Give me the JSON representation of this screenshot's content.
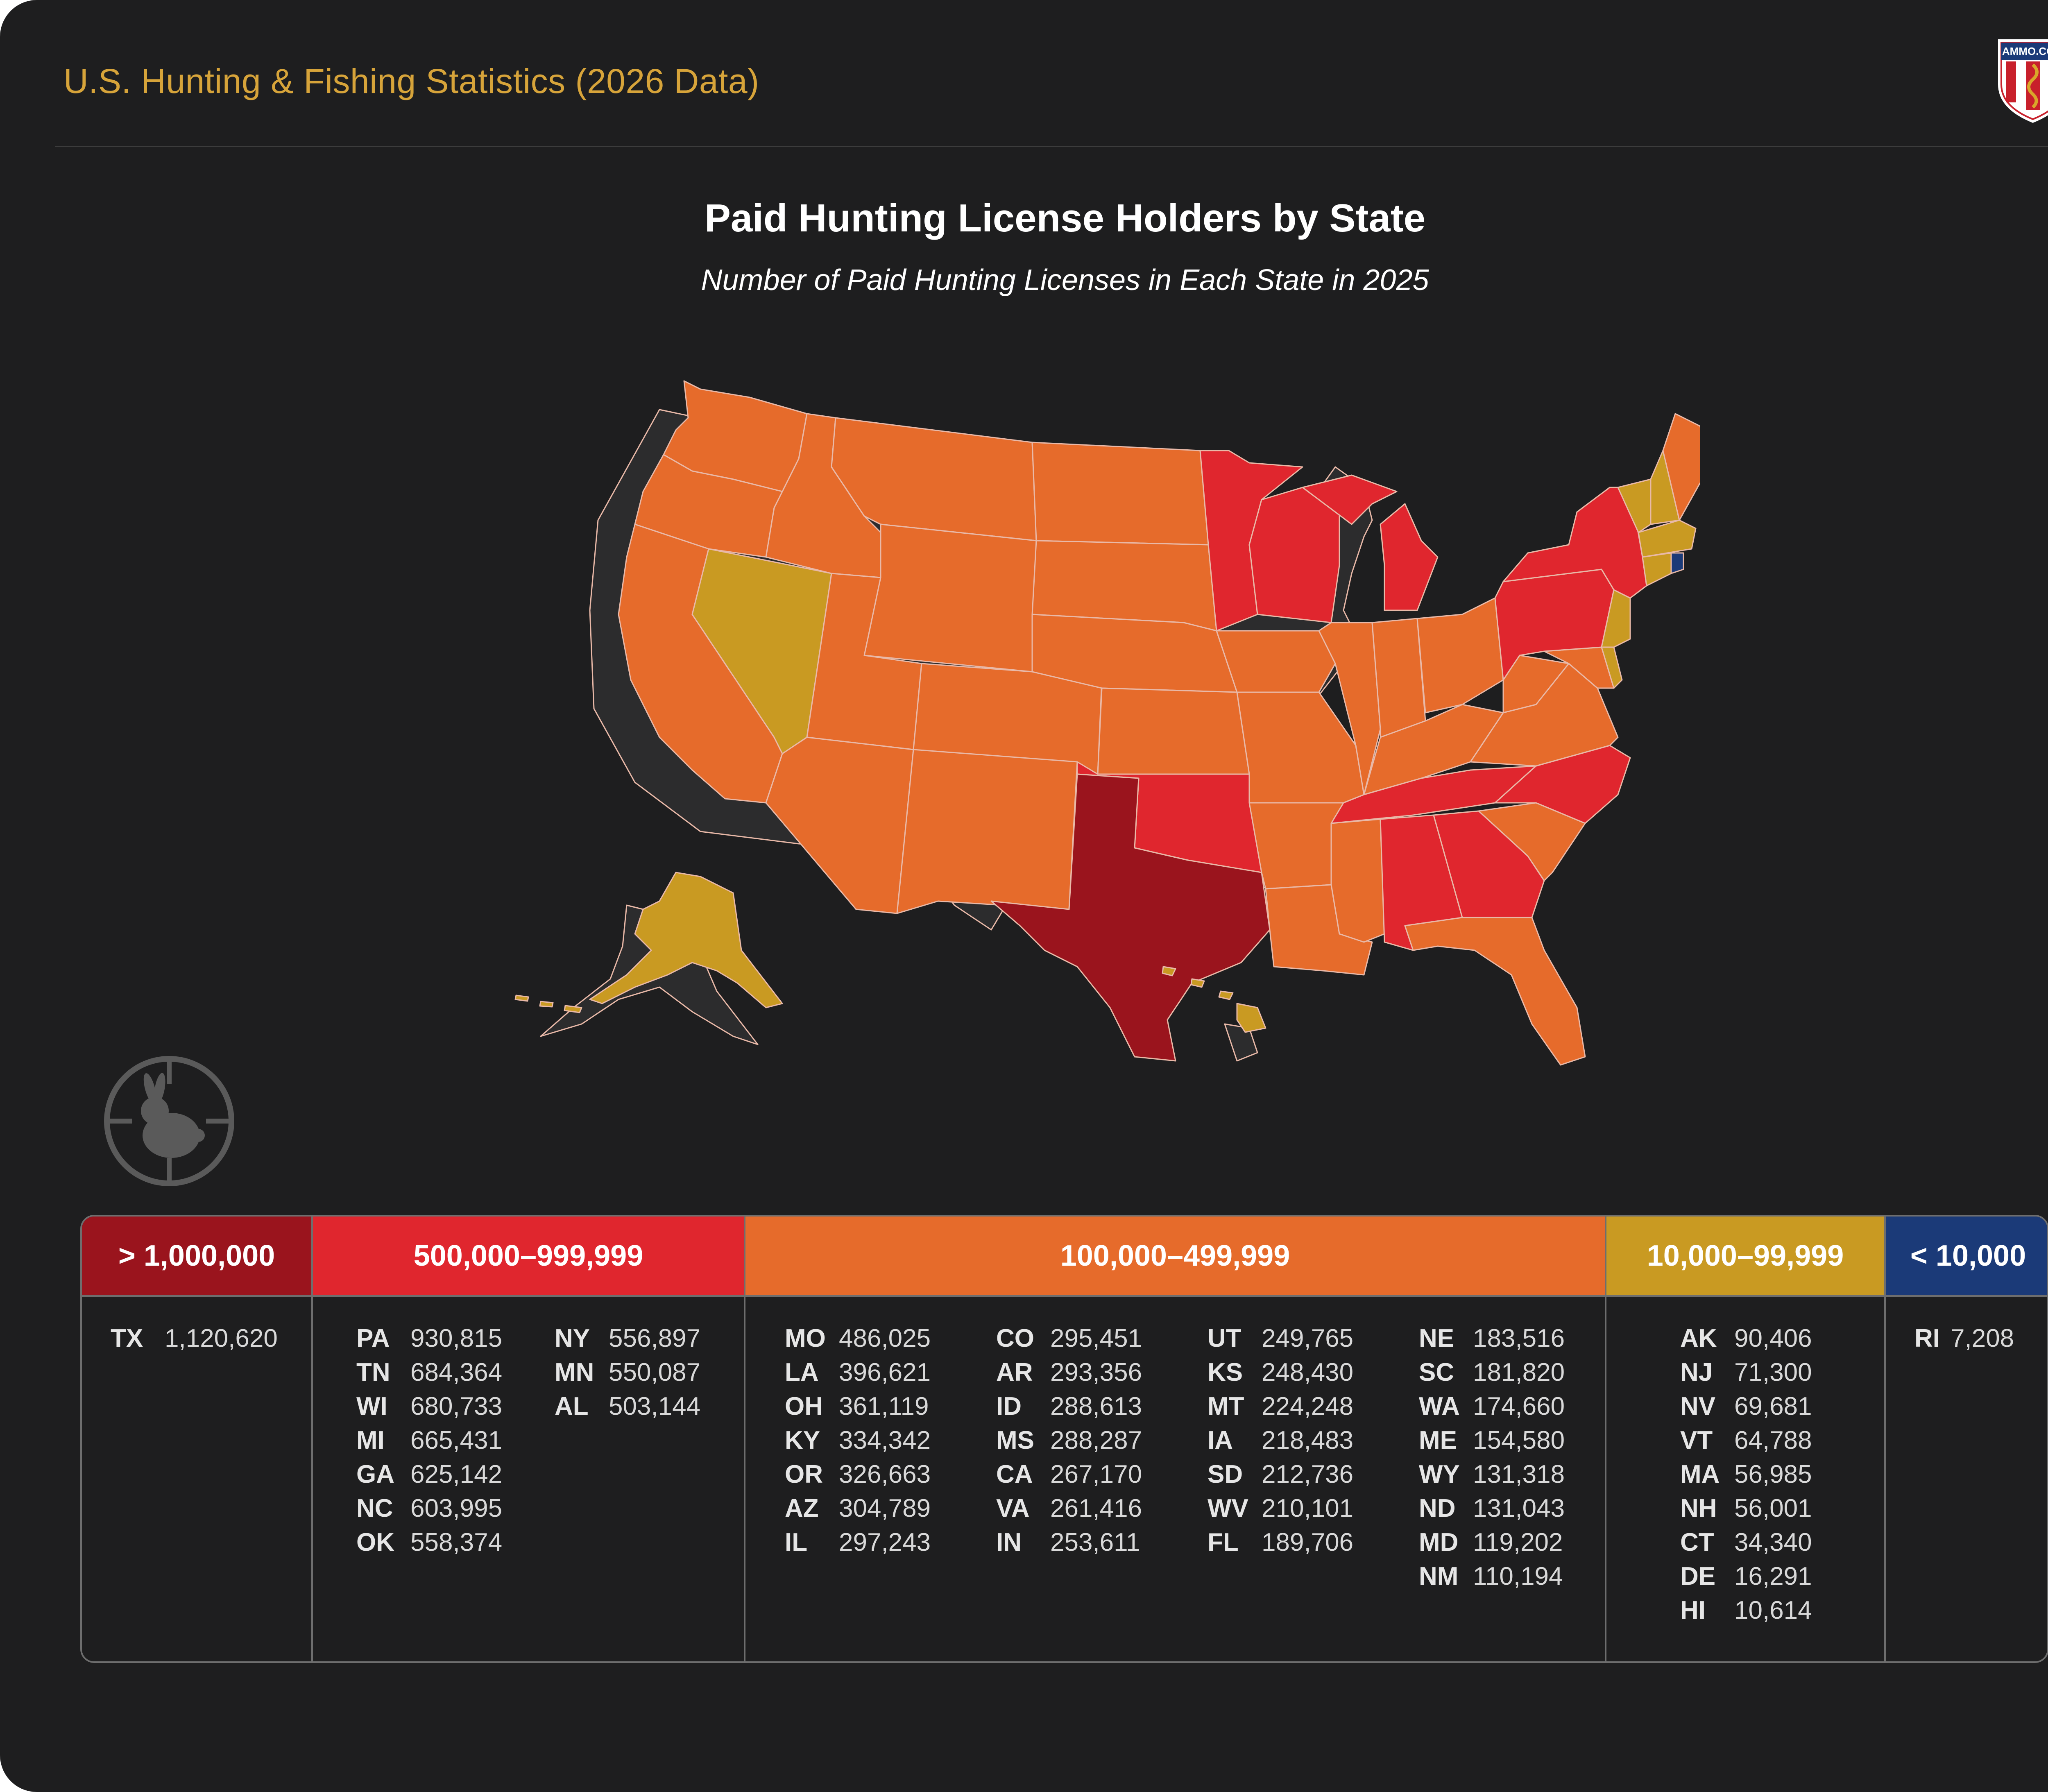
{
  "header": {
    "site_title": "U.S. Hunting & Fishing Statistics (2026 Data)",
    "logo_text": "AMMO.COM"
  },
  "map": {
    "title": "Paid Hunting License Holders by State",
    "subtitle": "Number of Paid Hunting Licenses in Each State in 2025"
  },
  "colors": {
    "tier1": "#9a141d",
    "tier2": "#e0262e",
    "tier3": "#e66b2b",
    "tier4": "#c99a22",
    "tier5": "#1b3a78",
    "background": "#1e1e1f",
    "accent": "#d7a43a"
  },
  "icons": {
    "badge": "rabbit-crosshair-icon",
    "logo": "ammo-shield-logo"
  },
  "legend": {
    "tiers": [
      {
        "label": "> 1,000,000",
        "color": "#9a141d",
        "states": [
          {
            "abbr": "TX",
            "value": "1,120,620"
          }
        ]
      },
      {
        "label": "500,000–999,999",
        "color": "#e0262e",
        "states": [
          {
            "abbr": "PA",
            "value": "930,815"
          },
          {
            "abbr": "TN",
            "value": "684,364"
          },
          {
            "abbr": "WI",
            "value": "680,733"
          },
          {
            "abbr": "MI",
            "value": "665,431"
          },
          {
            "abbr": "GA",
            "value": "625,142"
          },
          {
            "abbr": "NC",
            "value": "603,995"
          },
          {
            "abbr": "OK",
            "value": "558,374"
          },
          {
            "abbr": "NY",
            "value": "556,897"
          },
          {
            "abbr": "MN",
            "value": "550,087"
          },
          {
            "abbr": "AL",
            "value": "503,144"
          }
        ]
      },
      {
        "label": "100,000–499,999",
        "color": "#e66b2b",
        "states": [
          {
            "abbr": "MO",
            "value": "486,025"
          },
          {
            "abbr": "LA",
            "value": "396,621"
          },
          {
            "abbr": "OH",
            "value": "361,119"
          },
          {
            "abbr": "KY",
            "value": "334,342"
          },
          {
            "abbr": "OR",
            "value": "326,663"
          },
          {
            "abbr": "AZ",
            "value": "304,789"
          },
          {
            "abbr": "IL",
            "value": "297,243"
          },
          {
            "abbr": "CO",
            "value": "295,451"
          },
          {
            "abbr": "AR",
            "value": "293,356"
          },
          {
            "abbr": "ID",
            "value": "288,613"
          },
          {
            "abbr": "MS",
            "value": "288,287"
          },
          {
            "abbr": "CA",
            "value": "267,170"
          },
          {
            "abbr": "VA",
            "value": "261,416"
          },
          {
            "abbr": "IN",
            "value": "253,611"
          },
          {
            "abbr": "UT",
            "value": "249,765"
          },
          {
            "abbr": "KS",
            "value": "248,430"
          },
          {
            "abbr": "MT",
            "value": "224,248"
          },
          {
            "abbr": "IA",
            "value": "218,483"
          },
          {
            "abbr": "SD",
            "value": "212,736"
          },
          {
            "abbr": "WV",
            "value": "210,101"
          },
          {
            "abbr": "FL",
            "value": "189,706"
          },
          {
            "abbr": "NE",
            "value": "183,516"
          },
          {
            "abbr": "SC",
            "value": "181,820"
          },
          {
            "abbr": "WA",
            "value": "174,660"
          },
          {
            "abbr": "ME",
            "value": "154,580"
          },
          {
            "abbr": "WY",
            "value": "131,318"
          },
          {
            "abbr": "ND",
            "value": "131,043"
          },
          {
            "abbr": "MD",
            "value": "119,202"
          },
          {
            "abbr": "NM",
            "value": "110,194"
          }
        ]
      },
      {
        "label": "10,000–99,999",
        "color": "#c99a22",
        "states": [
          {
            "abbr": "AK",
            "value": "90,406"
          },
          {
            "abbr": "NJ",
            "value": "71,300"
          },
          {
            "abbr": "NV",
            "value": "69,681"
          },
          {
            "abbr": "VT",
            "value": "64,788"
          },
          {
            "abbr": "MA",
            "value": "56,985"
          },
          {
            "abbr": "NH",
            "value": "56,001"
          },
          {
            "abbr": "CT",
            "value": "34,340"
          },
          {
            "abbr": "DE",
            "value": "16,291"
          },
          {
            "abbr": "HI",
            "value": "10,614"
          }
        ]
      },
      {
        "label": "< 10,000",
        "color": "#1b3a78",
        "states": [
          {
            "abbr": "RI",
            "value": "7,208"
          }
        ]
      }
    ]
  }
}
